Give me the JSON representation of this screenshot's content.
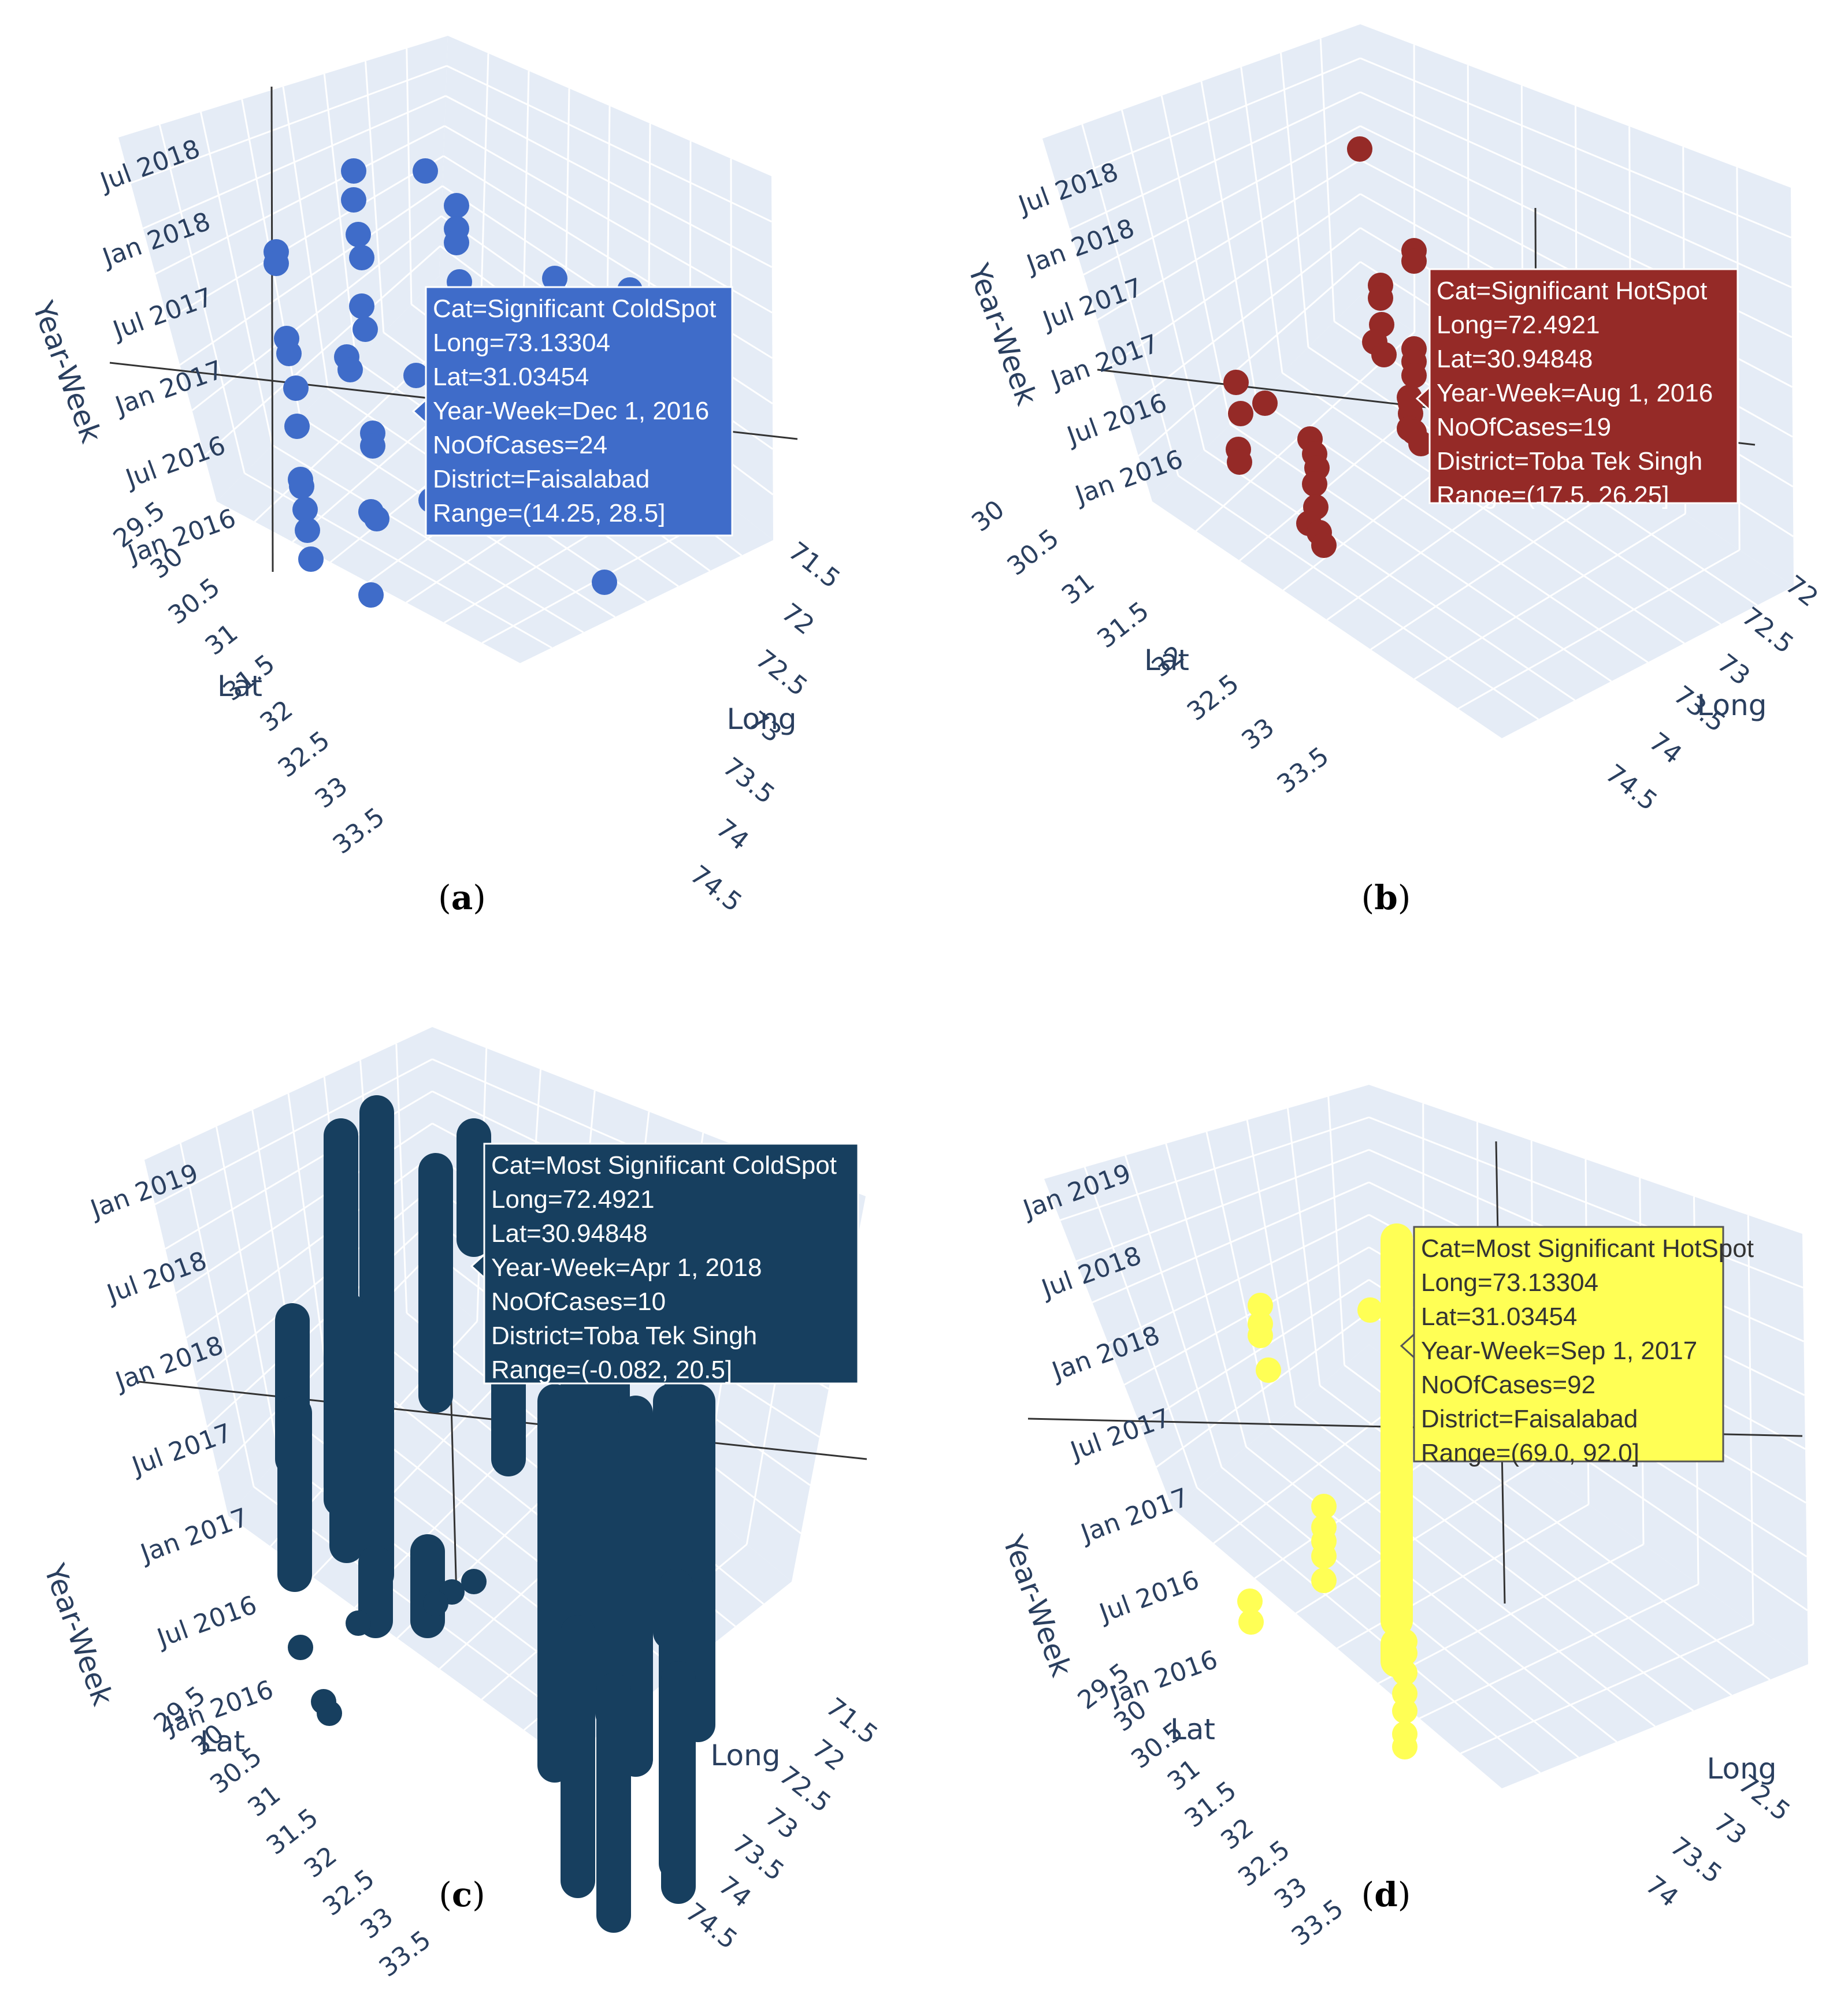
{
  "figure": {
    "panels": [
      {
        "id": "a",
        "caption": "a",
        "chart_data": {
          "type": "scatter",
          "title": "",
          "x_axis": {
            "label": "Long",
            "ticks": [
              "71.5",
              "72",
              "72.5",
              "73",
              "73.5",
              "74",
              "74.5"
            ],
            "range": [
              71.5,
              74.5
            ]
          },
          "y_axis": {
            "label": "Lat",
            "ticks": [
              "29.5",
              "30",
              "30.5",
              "31",
              "31.5",
              "32",
              "32.5",
              "33",
              "33.5"
            ],
            "range": [
              29.5,
              33.5
            ]
          },
          "z_axis": {
            "label": "Year-Week",
            "ticks": [
              "Jan 2016",
              "Jul 2016",
              "Jan 2017",
              "Jul 2017",
              "Jan 2018",
              "Jul 2018"
            ]
          },
          "marker_color": "#3f6cc9",
          "category": "Significant ColdSpot",
          "tooltip": [
            "Cat=Significant ColdSpot",
            "Long=73.13304",
            "Lat=31.03454",
            "Year-Week=Dec 1, 2016",
            "NoOfCases=24",
            "District=Faisalabad",
            "Range=(14.25, 28.5]"
          ]
        }
      },
      {
        "id": "b",
        "caption": "b",
        "chart_data": {
          "type": "scatter",
          "title": "",
          "x_axis": {
            "label": "Long",
            "ticks": [
              "72",
              "72.5",
              "73",
              "73.5",
              "74",
              "74.5"
            ],
            "range": [
              72,
              74.5
            ]
          },
          "y_axis": {
            "label": "Lat",
            "ticks": [
              "30",
              "30.5",
              "31",
              "31.5",
              "32",
              "32.5",
              "33",
              "33.5"
            ],
            "range": [
              30,
              33.5
            ]
          },
          "z_axis": {
            "label": "Year-Week",
            "ticks": [
              "Jan 2016",
              "Jul 2016",
              "Jan 2017",
              "Jul 2017",
              "Jan 2018",
              "Jul 2018"
            ]
          },
          "marker_color": "#952a27",
          "category": "Significant HotSpot",
          "tooltip": [
            "Cat=Significant HotSpot",
            "Long=72.4921",
            "Lat=30.94848",
            "Year-Week=Aug 1, 2016",
            "NoOfCases=19",
            "District=Toba Tek Singh",
            "Range=(17.5, 26.25]"
          ]
        }
      },
      {
        "id": "c",
        "caption": "c",
        "chart_data": {
          "type": "scatter",
          "title": "",
          "x_axis": {
            "label": "Long",
            "ticks": [
              "71.5",
              "72",
              "72.5",
              "73",
              "73.5",
              "74",
              "74.5"
            ],
            "range": [
              71.5,
              74.5
            ]
          },
          "y_axis": {
            "label": "Lat",
            "ticks": [
              "29.5",
              "30",
              "30.5",
              "31",
              "31.5",
              "32",
              "32.5",
              "33",
              "33.5"
            ],
            "range": [
              29.5,
              33.5
            ]
          },
          "z_axis": {
            "label": "Year-Week",
            "ticks": [
              "Jan 2016",
              "Jul 2016",
              "Jan 2017",
              "Jul 2017",
              "Jan 2018",
              "Jul 2018",
              "Jan 2019"
            ]
          },
          "marker_color": "#173f5f",
          "category": "Most Significant ColdSpot",
          "tooltip": [
            "Cat=Most Significant ColdSpot",
            "Long=72.4921",
            "Lat=30.94848",
            "Year-Week=Apr 1, 2018",
            "NoOfCases=10",
            "District=Toba Tek Singh",
            "Range=(-0.082, 20.5]"
          ]
        }
      },
      {
        "id": "d",
        "caption": "d",
        "chart_data": {
          "type": "scatter",
          "title": "",
          "x_axis": {
            "label": "Long",
            "ticks": [
              "72.5",
              "73",
              "73.5",
              "74"
            ],
            "range": [
              72.5,
              74
            ]
          },
          "y_axis": {
            "label": "Lat",
            "ticks": [
              "29.5",
              "30",
              "30.5",
              "31",
              "31.5",
              "32",
              "32.5",
              "33",
              "33.5"
            ],
            "range": [
              29.5,
              33.5
            ]
          },
          "z_axis": {
            "label": "Year-Week",
            "ticks": [
              "Jan 2016",
              "Jul 2016",
              "Jan 2017",
              "Jul 2017",
              "Jan 2018",
              "Jul 2018",
              "Jan 2019"
            ]
          },
          "marker_color": "#ffff55",
          "category": "Most Significant HotSpot",
          "tooltip": [
            "Cat=Most Significant HotSpot",
            "Long=73.13304",
            "Lat=31.03454",
            "Year-Week=Sep 1, 2017",
            "NoOfCases=92",
            "District=Faisalabad",
            "Range=(69.0, 92.0]"
          ]
        }
      }
    ]
  }
}
